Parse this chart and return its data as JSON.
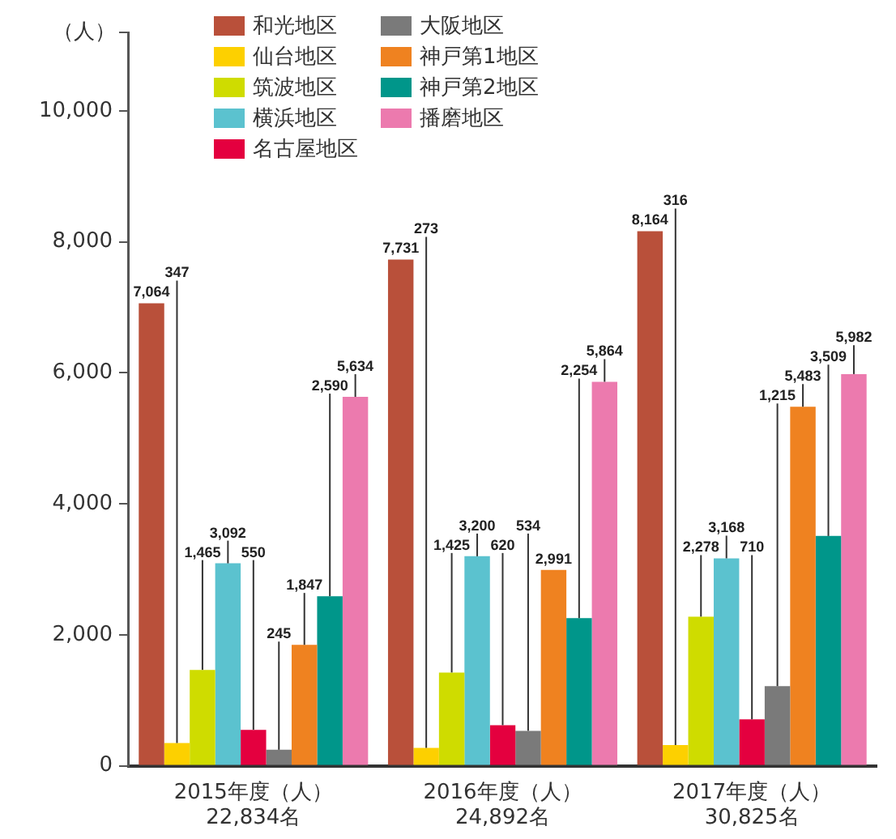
{
  "chart_data": {
    "type": "bar",
    "ylabel": "（人）",
    "categories": [
      "2015年度（人）\n22,834名",
      "2016年度（人）\n24,892名",
      "2017年度（人）\n30,825名"
    ],
    "series": [
      {
        "name": "和光地区",
        "color": "#b9503a",
        "values": [
          7064,
          7731,
          8164
        ],
        "value_labels": [
          "7,064",
          "7,731",
          "8,164"
        ]
      },
      {
        "name": "仙台地区",
        "color": "#fdd000",
        "values": [
          347,
          273,
          316
        ],
        "value_labels": [
          "347",
          "273",
          "316"
        ]
      },
      {
        "name": "筑波地区",
        "color": "#cfdc00",
        "values": [
          1465,
          1425,
          2278
        ],
        "value_labels": [
          "1,465",
          "1,425",
          "2,278"
        ]
      },
      {
        "name": "横浜地区",
        "color": "#5bc2cf",
        "values": [
          3092,
          3200,
          3168
        ],
        "value_labels": [
          "3,092",
          "3,200",
          "3,168"
        ]
      },
      {
        "name": "名古屋地区",
        "color": "#e4003f",
        "values": [
          550,
          620,
          710
        ],
        "value_labels": [
          "550",
          "620",
          "710"
        ]
      },
      {
        "name": "大阪地区",
        "color": "#7a7a7a",
        "values": [
          245,
          534,
          1215
        ],
        "value_labels": [
          "245",
          "534",
          "1,215"
        ]
      },
      {
        "name": "神戸第1地区",
        "color": "#ef8220",
        "values": [
          1847,
          2991,
          5483
        ],
        "value_labels": [
          "1,847",
          "2,991",
          "5,483"
        ]
      },
      {
        "name": "神戸第2地区",
        "color": "#00968a",
        "values": [
          2590,
          2254,
          3509
        ],
        "value_labels": [
          "2,590",
          "2,254",
          "3,509"
        ]
      },
      {
        "name": "播磨地区",
        "color": "#ec7aae",
        "values": [
          5634,
          5864,
          5982
        ],
        "value_labels": [
          "5,634",
          "5,864",
          "5,982"
        ]
      }
    ],
    "ylim": [
      0,
      11200
    ],
    "yticks": [
      0,
      {
        "value": 2000,
        "label": "2,000"
      },
      {
        "value": 4000,
        "label": "4,000"
      },
      {
        "value": 6000,
        "label": "6,000"
      },
      {
        "value": 8000,
        "label": "8,000"
      },
      {
        "value": 10000,
        "label": "10,000"
      }
    ],
    "grid": false,
    "legend": "top left"
  }
}
